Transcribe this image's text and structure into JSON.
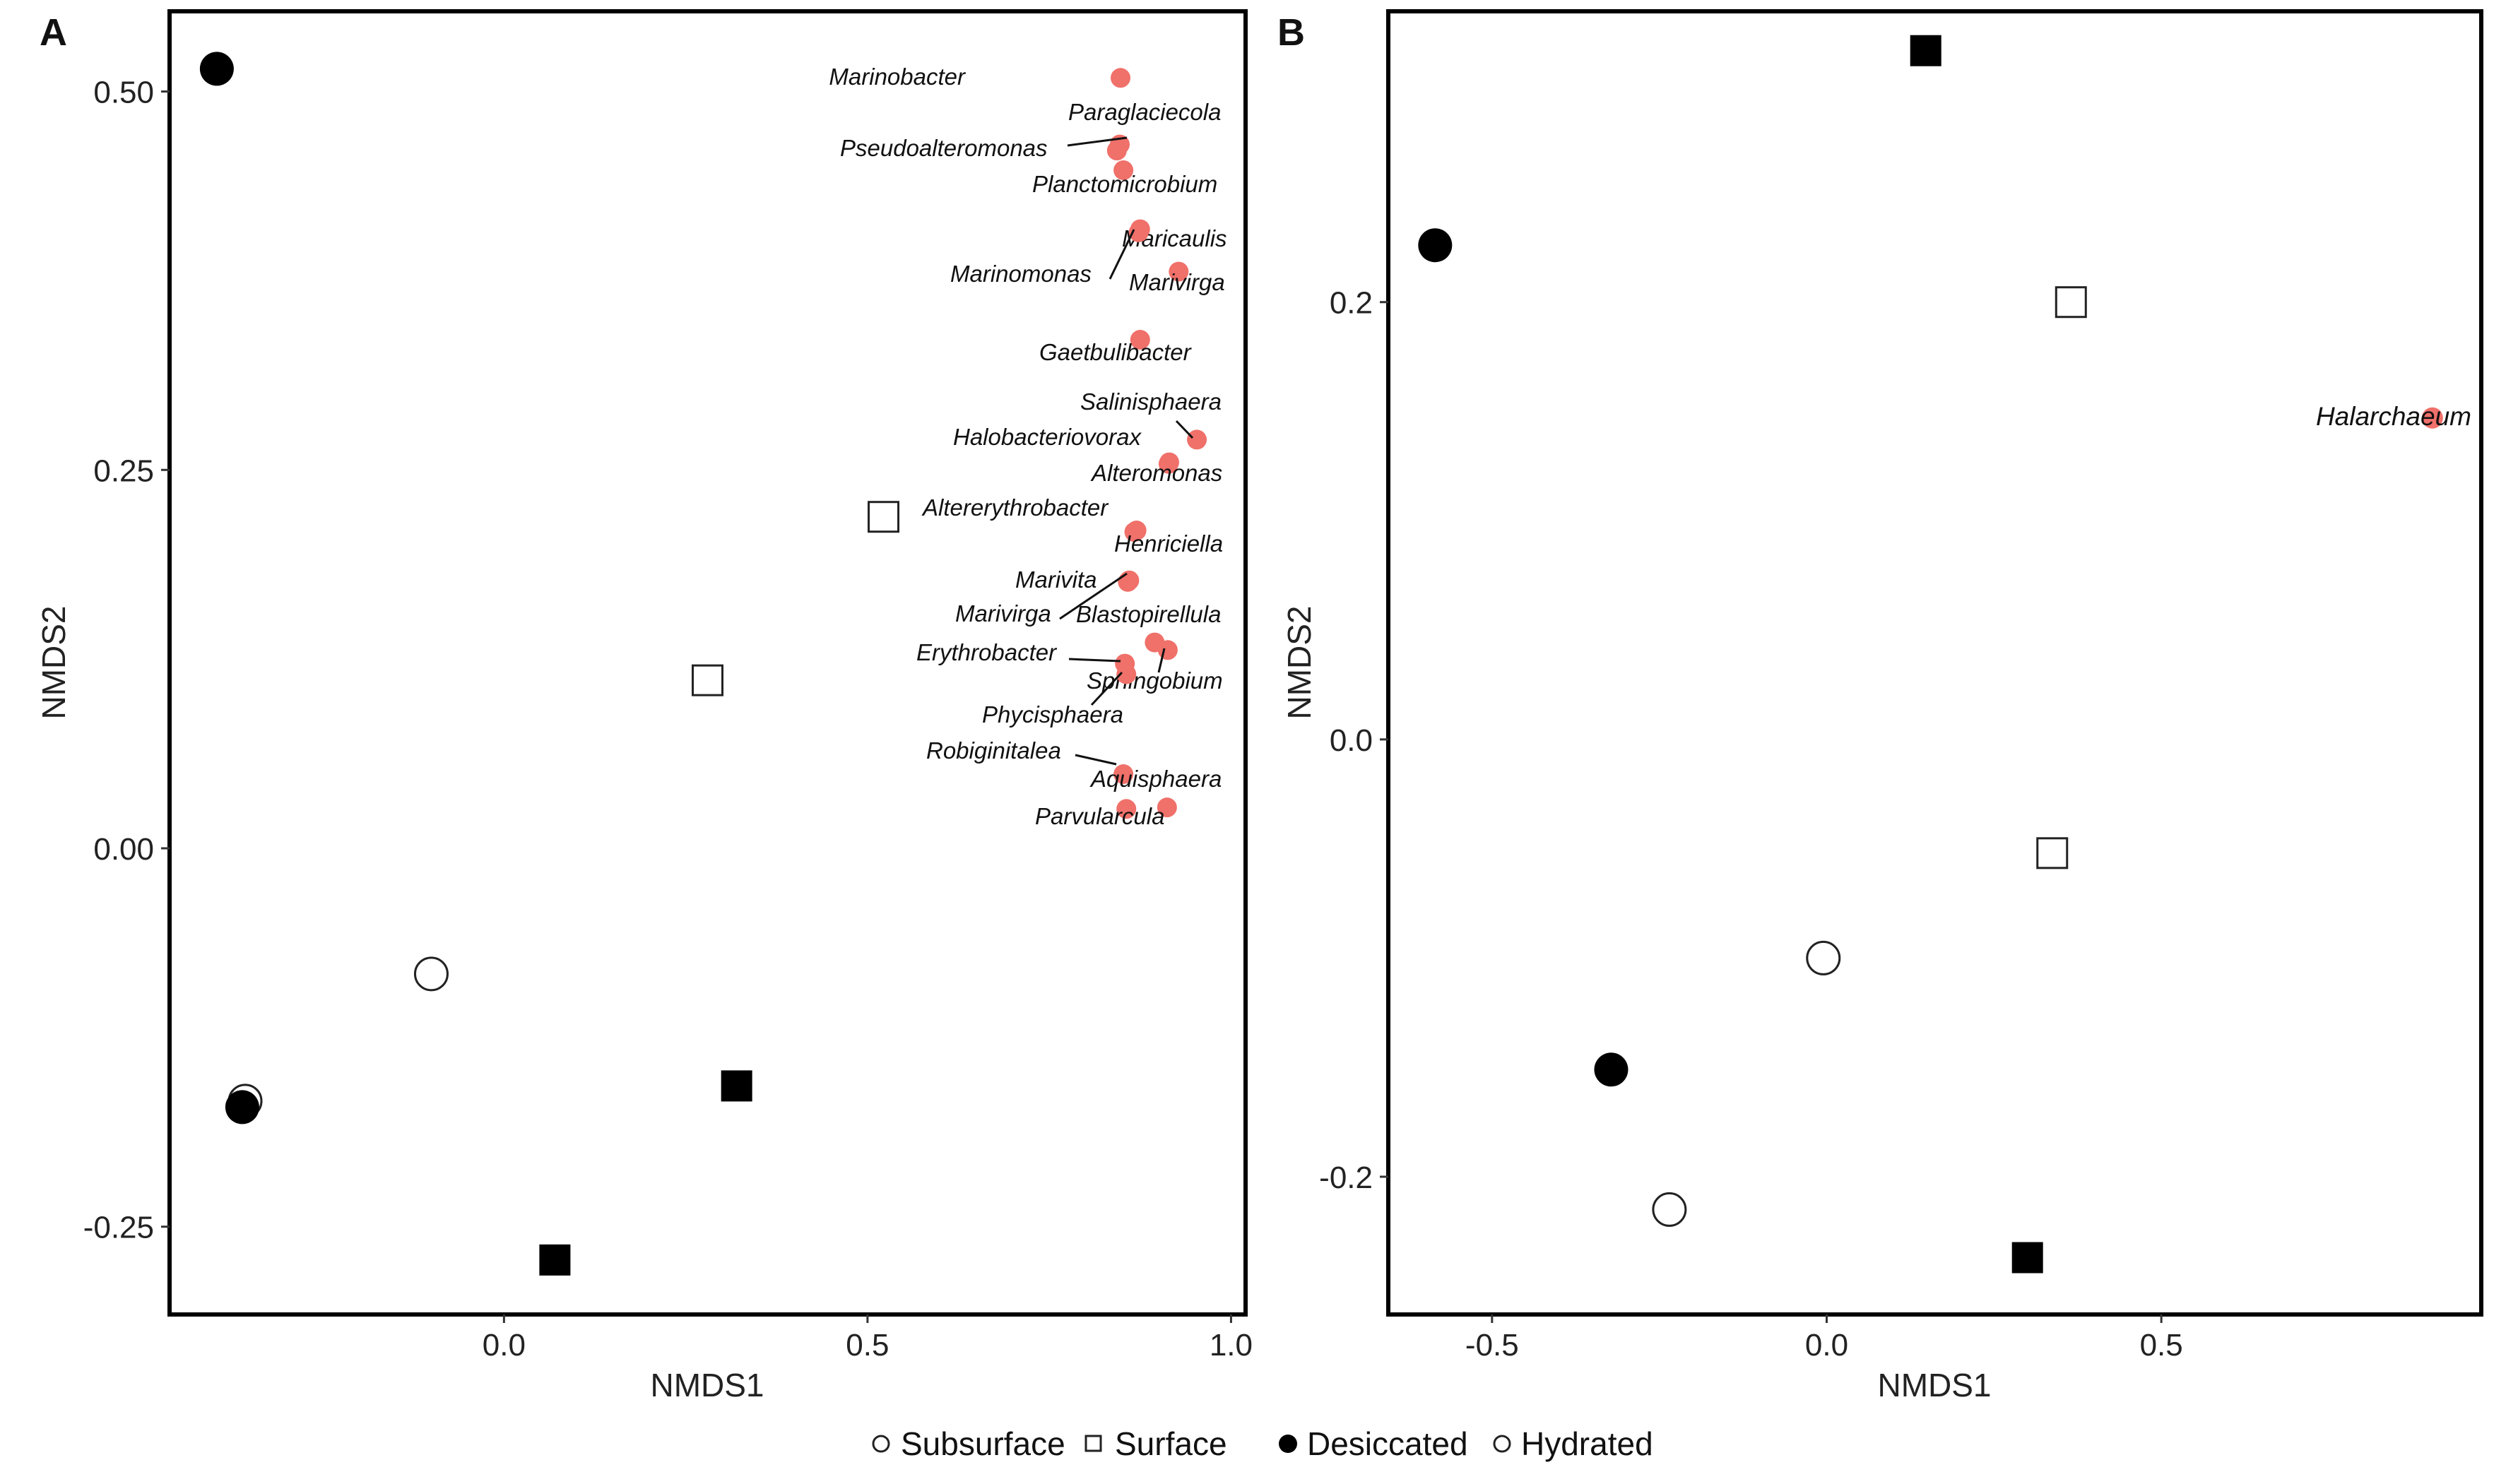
{
  "chart_data": [
    {
      "type": "scatter",
      "panel": "A",
      "xlabel": "NMDS1",
      "ylabel": "NMDS2",
      "xlim": [
        -0.46,
        1.02
      ],
      "ylim": [
        -0.308,
        0.553
      ],
      "xticks": [
        "0.0",
        "0.5",
        "1.0"
      ],
      "xtick_values": [
        0.0,
        0.5,
        1.0
      ],
      "yticks": [
        "0.50",
        "0.25",
        "0.00",
        "-0.25"
      ],
      "ytick_values": [
        0.5,
        0.25,
        0.0,
        -0.25
      ],
      "samples": [
        {
          "x": -0.395,
          "y": 0.515,
          "shape": "circle",
          "fill": "filled"
        },
        {
          "x": -0.356,
          "y": -0.167,
          "shape": "circle",
          "fill": "open"
        },
        {
          "x": -0.36,
          "y": -0.171,
          "shape": "circle",
          "fill": "filled"
        },
        {
          "x": -0.1,
          "y": -0.083,
          "shape": "circle",
          "fill": "open"
        },
        {
          "x": 0.28,
          "y": 0.111,
          "shape": "square",
          "fill": "open"
        },
        {
          "x": 0.522,
          "y": 0.219,
          "shape": "square",
          "fill": "open"
        },
        {
          "x": 0.32,
          "y": -0.157,
          "shape": "square",
          "fill": "filled"
        },
        {
          "x": 0.07,
          "y": -0.272,
          "shape": "square",
          "fill": "filled"
        }
      ],
      "taxa": [
        {
          "name": "Marinobacter",
          "x": 0.848,
          "y": 0.509
        },
        {
          "name": "Paraglaciecola",
          "x": 0.847,
          "y": 0.465
        },
        {
          "name": "Pseudoalteromonas",
          "x": 0.843,
          "y": 0.461
        },
        {
          "name": "Planctomicrobium",
          "x": 0.852,
          "y": 0.448
        },
        {
          "name": "Maricaulis",
          "x": 0.875,
          "y": 0.409
        },
        {
          "name": "Marinomonas",
          "x": 0.873,
          "y": 0.407
        },
        {
          "name": "Marivirga",
          "x": 0.928,
          "y": 0.381
        },
        {
          "name": "Gaetbulibacter",
          "x": 0.875,
          "y": 0.336
        },
        {
          "name": "Salinisphaera",
          "x": 0.953,
          "y": 0.27
        },
        {
          "name": "Halobacteriovorax",
          "x": 0.915,
          "y": 0.255
        },
        {
          "name": "Alteromonas",
          "x": 0.914,
          "y": 0.254
        },
        {
          "name": "Altererythrobacter",
          "x": 0.87,
          "y": 0.21
        },
        {
          "name": "Henriciella",
          "x": 0.867,
          "y": 0.209
        },
        {
          "name": "Marivita",
          "x": 0.86,
          "y": 0.177
        },
        {
          "name": "Marivirga",
          "x": 0.858,
          "y": 0.176
        },
        {
          "name": "Blastopirellula",
          "x": 0.895,
          "y": 0.136
        },
        {
          "name": "Erythrobacter",
          "x": 0.854,
          "y": 0.122
        },
        {
          "name": "Sphingobium",
          "x": 0.913,
          "y": 0.131
        },
        {
          "name": "Phycisphaera",
          "x": 0.856,
          "y": 0.115
        },
        {
          "name": "Robiginitalea",
          "x": 0.852,
          "y": 0.049
        },
        {
          "name": "Aquisphaera",
          "x": 0.912,
          "y": 0.027
        },
        {
          "name": "Parvularcula",
          "x": 0.856,
          "y": 0.026
        }
      ]
    },
    {
      "type": "scatter",
      "panel": "B",
      "xlabel": "NMDS1",
      "ylabel": "NMDS2",
      "xlim": [
        -0.655,
        0.978
      ],
      "ylim": [
        -0.263,
        0.333
      ],
      "xticks": [
        "-0.5",
        "0.0",
        "0.5"
      ],
      "xtick_values": [
        -0.5,
        0.0,
        0.5
      ],
      "yticks": [
        "0.2",
        "0.0",
        "-0.2"
      ],
      "ytick_values": [
        0.2,
        0.0,
        -0.2
      ],
      "samples": [
        {
          "x": 0.148,
          "y": 0.315,
          "shape": "square",
          "fill": "filled"
        },
        {
          "x": -0.585,
          "y": 0.226,
          "shape": "circle",
          "fill": "filled"
        },
        {
          "x": 0.365,
          "y": 0.2,
          "shape": "square",
          "fill": "open"
        },
        {
          "x": 0.337,
          "y": -0.052,
          "shape": "square",
          "fill": "open"
        },
        {
          "x": -0.005,
          "y": -0.1,
          "shape": "circle",
          "fill": "open"
        },
        {
          "x": -0.322,
          "y": -0.151,
          "shape": "circle",
          "fill": "filled"
        },
        {
          "x": -0.235,
          "y": -0.215,
          "shape": "circle",
          "fill": "open"
        },
        {
          "x": 0.3,
          "y": -0.237,
          "shape": "square",
          "fill": "filled"
        }
      ],
      "taxa": [
        {
          "name": "Halarchaeum",
          "x": 0.905,
          "y": 0.147
        }
      ]
    }
  ],
  "figure": {
    "panel_a_label": "A",
    "panel_b_label": "B",
    "point_color": "#f0706a",
    "legend": {
      "items": [
        {
          "label": "Subsurface",
          "symbol": "open-circle"
        },
        {
          "label": "Surface",
          "symbol": "open-square"
        },
        {
          "label": "Desiccated",
          "symbol": "filled-circle"
        },
        {
          "label": "Hydrated",
          "symbol": "open-circle"
        }
      ]
    }
  }
}
